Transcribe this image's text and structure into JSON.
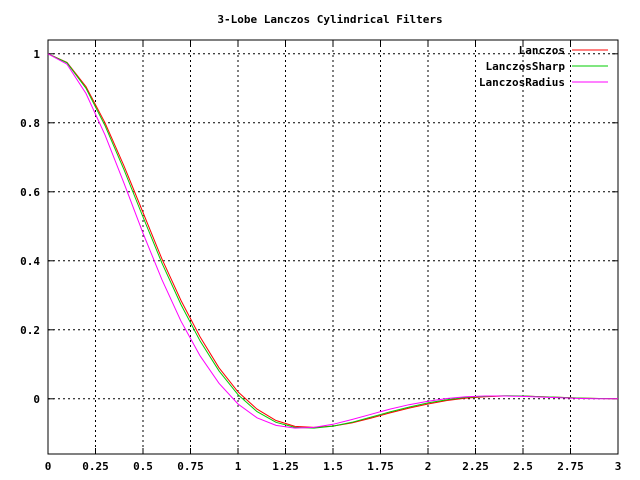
{
  "chart_data": {
    "type": "line",
    "title": "3-Lobe Lanczos Cylindrical Filters",
    "xlabel": "",
    "ylabel": "",
    "xlim": [
      0,
      3
    ],
    "ylim": [
      -0.16,
      1.04
    ],
    "x_ticks": [
      0,
      0.25,
      0.5,
      0.75,
      1,
      1.25,
      1.5,
      1.75,
      2,
      2.25,
      2.5,
      2.75,
      3
    ],
    "x_tick_labels": [
      "0",
      "0.25",
      "0.5",
      "0.75",
      "1",
      "1.25",
      "1.5",
      "1.75",
      "2",
      "2.25",
      "2.5",
      "2.75",
      "3"
    ],
    "y_ticks": [
      0,
      0.2,
      0.4,
      0.6,
      0.8,
      1
    ],
    "y_tick_labels": [
      "0",
      "0.2",
      "0.4",
      "0.6",
      "0.8",
      "1"
    ],
    "grid": true,
    "legend_position": "top-right",
    "series": [
      {
        "name": "Lanczos",
        "color": "#ff0000",
        "x": [
          0,
          0.1,
          0.2,
          0.3,
          0.4,
          0.5,
          0.6,
          0.7,
          0.8,
          0.9,
          1.0,
          1.1,
          1.2,
          1.3,
          1.4,
          1.5,
          1.6,
          1.7,
          1.8,
          1.9,
          2.0,
          2.1,
          2.2,
          2.3,
          2.4,
          2.5,
          2.6,
          2.7,
          2.8,
          2.9,
          3.0
        ],
        "y": [
          1.0,
          0.975,
          0.905,
          0.8,
          0.675,
          0.54,
          0.405,
          0.285,
          0.18,
          0.09,
          0.02,
          -0.03,
          -0.063,
          -0.08,
          -0.083,
          -0.079,
          -0.07,
          -0.056,
          -0.041,
          -0.027,
          -0.015,
          -0.005,
          0.002,
          0.006,
          0.008,
          0.008,
          0.006,
          0.004,
          0.002,
          0.001,
          0.0
        ]
      },
      {
        "name": "LanczosSharp",
        "color": "#00cc00",
        "x": [
          0,
          0.1,
          0.2,
          0.3,
          0.4,
          0.5,
          0.6,
          0.7,
          0.8,
          0.9,
          1.0,
          1.1,
          1.2,
          1.3,
          1.4,
          1.5,
          1.6,
          1.7,
          1.8,
          1.9,
          2.0,
          2.1,
          2.2,
          2.3,
          2.4,
          2.5,
          2.6,
          2.7,
          2.8,
          2.9,
          3.0
        ],
        "y": [
          1.0,
          0.974,
          0.9,
          0.792,
          0.664,
          0.527,
          0.393,
          0.273,
          0.168,
          0.081,
          0.012,
          -0.037,
          -0.068,
          -0.083,
          -0.085,
          -0.079,
          -0.068,
          -0.053,
          -0.038,
          -0.024,
          -0.012,
          -0.003,
          0.004,
          0.007,
          0.009,
          0.008,
          0.006,
          0.004,
          0.002,
          0.001,
          0.0
        ]
      },
      {
        "name": "LanczosRadius",
        "color": "#ff00ff",
        "x": [
          0,
          0.1,
          0.2,
          0.3,
          0.4,
          0.5,
          0.6,
          0.7,
          0.8,
          0.9,
          1.0,
          1.1,
          1.2,
          1.3,
          1.4,
          1.5,
          1.6,
          1.7,
          1.8,
          1.9,
          2.0,
          2.1,
          2.2,
          2.3,
          2.4,
          2.5,
          2.6,
          2.7,
          2.8,
          2.9,
          3.0
        ],
        "y": [
          1.0,
          0.97,
          0.885,
          0.765,
          0.625,
          0.48,
          0.345,
          0.225,
          0.125,
          0.045,
          -0.015,
          -0.055,
          -0.077,
          -0.085,
          -0.083,
          -0.074,
          -0.06,
          -0.045,
          -0.03,
          -0.017,
          -0.007,
          0.001,
          0.006,
          0.008,
          0.008,
          0.007,
          0.005,
          0.003,
          0.001,
          0.0,
          0.0
        ]
      }
    ]
  }
}
